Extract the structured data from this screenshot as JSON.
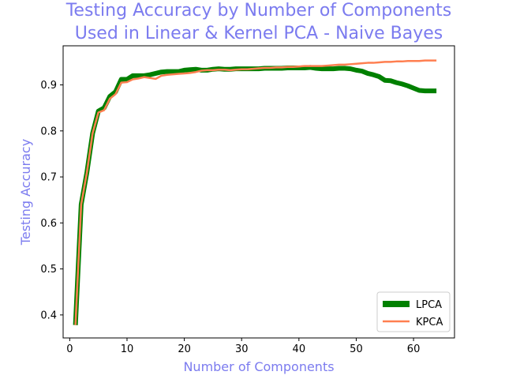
{
  "chart_data": {
    "type": "line",
    "title_line1": "Testing Accuracy by Number of Components",
    "title_line2": "Used in Linear & Kernel PCA - Naive Bayes",
    "xlabel": "Number of Components",
    "ylabel": "Testing Accuracy",
    "xlim": [
      -1.15,
      67.15
    ],
    "ylim": [
      0.35,
      0.985
    ],
    "xticks": [
      0,
      10,
      20,
      30,
      40,
      50,
      60
    ],
    "yticks": [
      0.4,
      0.5,
      0.6,
      0.7,
      0.8,
      0.9
    ],
    "grid": false,
    "legend_position": "lower-right",
    "x": [
      1,
      2,
      3,
      4,
      5,
      6,
      7,
      8,
      9,
      10,
      11,
      12,
      13,
      14,
      15,
      16,
      17,
      18,
      19,
      20,
      21,
      22,
      23,
      24,
      25,
      26,
      27,
      28,
      29,
      30,
      31,
      32,
      33,
      34,
      35,
      36,
      37,
      38,
      39,
      40,
      41,
      42,
      43,
      44,
      45,
      46,
      47,
      48,
      49,
      50,
      51,
      52,
      53,
      54,
      55,
      56,
      57,
      58,
      59,
      60,
      61,
      62,
      63,
      64
    ],
    "series": [
      {
        "name": "LPCA",
        "color": "#008000",
        "values": [
          0.378,
          0.64,
          0.71,
          0.795,
          0.843,
          0.85,
          0.875,
          0.885,
          0.912,
          0.912,
          0.92,
          0.92,
          0.92,
          0.922,
          0.925,
          0.928,
          0.929,
          0.929,
          0.929,
          0.932,
          0.933,
          0.934,
          0.932,
          0.932,
          0.934,
          0.935,
          0.934,
          0.934,
          0.935,
          0.935,
          0.935,
          0.935,
          0.935,
          0.936,
          0.936,
          0.936,
          0.936,
          0.937,
          0.937,
          0.937,
          0.937,
          0.938,
          0.936,
          0.935,
          0.935,
          0.935,
          0.936,
          0.936,
          0.935,
          0.932,
          0.93,
          0.925,
          0.922,
          0.918,
          0.91,
          0.909,
          0.905,
          0.902,
          0.898,
          0.893,
          0.888,
          0.887,
          0.887,
          0.887
        ]
      },
      {
        "name": "KPCA",
        "color": "#ff7f50",
        "values": [
          0.378,
          0.64,
          0.71,
          0.795,
          0.84,
          0.845,
          0.87,
          0.88,
          0.905,
          0.906,
          0.912,
          0.914,
          0.917,
          0.915,
          0.913,
          0.92,
          0.922,
          0.923,
          0.924,
          0.925,
          0.926,
          0.928,
          0.931,
          0.932,
          0.932,
          0.933,
          0.933,
          0.932,
          0.933,
          0.934,
          0.934,
          0.935,
          0.936,
          0.937,
          0.937,
          0.938,
          0.938,
          0.939,
          0.939,
          0.94,
          0.941,
          0.941,
          0.941,
          0.941,
          0.942,
          0.943,
          0.944,
          0.944,
          0.945,
          0.946,
          0.947,
          0.948,
          0.948,
          0.949,
          0.95,
          0.95,
          0.951,
          0.951,
          0.952,
          0.952,
          0.952,
          0.953,
          0.953,
          0.953
        ]
      }
    ]
  }
}
